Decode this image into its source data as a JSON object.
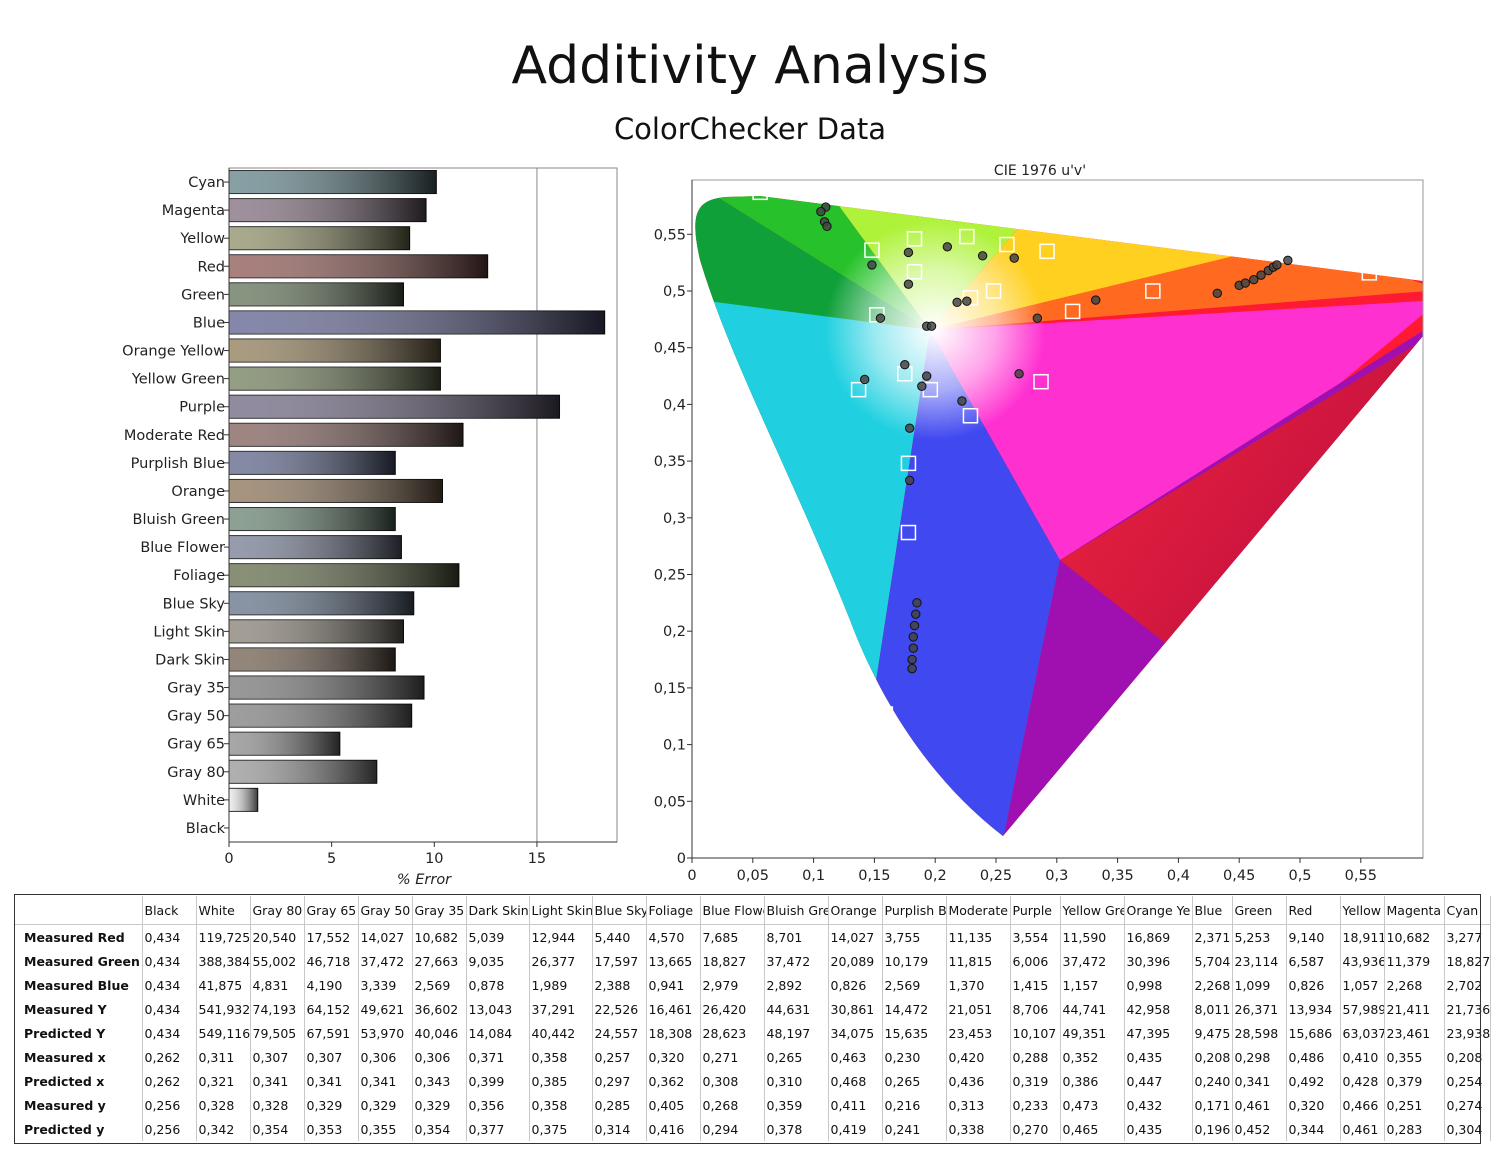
{
  "title": "Additivity Analysis",
  "subtitle": "ColorChecker Data",
  "chart_data": [
    {
      "type": "bar",
      "orientation": "horizontal",
      "categories": [
        "Cyan",
        "Magenta",
        "Yellow",
        "Red",
        "Green",
        "Blue",
        "Orange Yellow",
        "Yellow Green",
        "Purple",
        "Moderate Red",
        "Purplish Blue",
        "Orange",
        "Bluish Green",
        "Blue Flower",
        "Foliage",
        "Blue Sky",
        "Light Skin",
        "Dark Skin",
        "Gray 35",
        "Gray 50",
        "Gray 65",
        "Gray 80",
        "White",
        "Black"
      ],
      "values": [
        10.1,
        9.6,
        8.8,
        12.6,
        8.5,
        18.3,
        10.3,
        10.3,
        16.1,
        11.4,
        8.1,
        10.4,
        8.1,
        8.4,
        11.2,
        9.0,
        8.5,
        8.1,
        9.5,
        8.9,
        5.4,
        7.2,
        1.4,
        0
      ],
      "colors": [
        "#5d8086",
        "#7e6a7c",
        "#8d8d64",
        "#8b5550",
        "#5f7155",
        "#5c5f8e",
        "#8e7a54",
        "#6f7d58",
        "#6c6480",
        "#7e5c58",
        "#5a6289",
        "#8a7054",
        "#65826f",
        "#727b92",
        "#5f6a46",
        "#5f7188",
        "#857e72",
        "#6f5c4b",
        "#757575",
        "#7d7d7d",
        "#8a8a8a",
        "#959595",
        "#e9e9e9",
        "#000000"
      ],
      "xlabel": "% Error",
      "xlim": [
        0,
        18.9
      ],
      "xticks": [
        0,
        5,
        10,
        15
      ],
      "gridlines_x": [
        15
      ],
      "grid": true
    },
    {
      "type": "scatter",
      "title": "CIE 1976 u'v'",
      "xlim": [
        0,
        0.6
      ],
      "ylim": [
        0,
        0.6
      ],
      "xticks": [
        "0",
        "0,05",
        "0,1",
        "0,15",
        "0,2",
        "0,25",
        "0,3",
        "0,35",
        "0,4",
        "0,45",
        "0,5",
        "0,55"
      ],
      "yticks": [
        "0",
        "0,05",
        "0,1",
        "0,15",
        "0,2",
        "0,25",
        "0,3",
        "0,35",
        "0,4",
        "0,45",
        "0,5",
        "0,55"
      ],
      "background": "CIE 1976 u'v' spectral locus (gamut plot)",
      "series": [
        {
          "marker": "square",
          "points": [
            [
              0.056,
              0.587
            ],
            [
              0.148,
              0.536
            ],
            [
              0.183,
              0.546
            ],
            [
              0.226,
              0.548
            ],
            [
              0.259,
              0.541
            ],
            [
              0.292,
              0.535
            ],
            [
              0.183,
              0.517
            ],
            [
              0.229,
              0.494
            ],
            [
              0.248,
              0.5
            ],
            [
              0.379,
              0.5
            ],
            [
              0.557,
              0.516
            ],
            [
              0.152,
              0.479
            ],
            [
              0.313,
              0.482
            ],
            [
              0.175,
              0.427
            ],
            [
              0.287,
              0.42
            ],
            [
              0.137,
              0.413
            ],
            [
              0.196,
              0.413
            ],
            [
              0.229,
              0.39
            ],
            [
              0.178,
              0.348
            ],
            [
              0.178,
              0.287
            ],
            [
              0.159,
              0.127
            ]
          ]
        },
        {
          "marker": "circle",
          "points": [
            [
              0.11,
              0.574
            ],
            [
              0.106,
              0.57
            ],
            [
              0.109,
              0.561
            ],
            [
              0.111,
              0.557
            ],
            [
              0.21,
              0.539
            ],
            [
              0.178,
              0.534
            ],
            [
              0.148,
              0.523
            ],
            [
              0.239,
              0.531
            ],
            [
              0.265,
              0.529
            ],
            [
              0.178,
              0.506
            ],
            [
              0.218,
              0.49
            ],
            [
              0.226,
              0.491
            ],
            [
              0.332,
              0.492
            ],
            [
              0.155,
              0.476
            ],
            [
              0.284,
              0.476
            ],
            [
              0.193,
              0.469
            ],
            [
              0.197,
              0.469
            ],
            [
              0.175,
              0.435
            ],
            [
              0.193,
              0.425
            ],
            [
              0.269,
              0.427
            ],
            [
              0.142,
              0.422
            ],
            [
              0.189,
              0.416
            ],
            [
              0.222,
              0.403
            ],
            [
              0.179,
              0.379
            ],
            [
              0.179,
              0.333
            ],
            [
              0.432,
              0.498
            ],
            [
              0.45,
              0.505
            ],
            [
              0.455,
              0.507
            ],
            [
              0.462,
              0.51
            ],
            [
              0.468,
              0.514
            ],
            [
              0.474,
              0.518
            ],
            [
              0.478,
              0.521
            ],
            [
              0.481,
              0.523
            ],
            [
              0.49,
              0.527
            ],
            [
              0.185,
              0.225
            ],
            [
              0.184,
              0.215
            ],
            [
              0.183,
              0.205
            ],
            [
              0.182,
              0.195
            ],
            [
              0.182,
              0.185
            ],
            [
              0.181,
              0.175
            ],
            [
              0.181,
              0.167
            ]
          ]
        }
      ]
    }
  ],
  "table": {
    "columns": [
      "",
      "Black",
      "White",
      "Gray 80",
      "Gray 65",
      "Gray 50",
      "Gray 35",
      "Dark Skin",
      "Light Skin",
      "Blue Sky",
      "Foliage",
      "Blue Flowe",
      "Bluish Gre",
      "Orange",
      "Purplish Bl",
      "Moderate",
      "Purple",
      "Yellow Gre",
      "Orange Ye",
      "Blue",
      "Green",
      "Red",
      "Yellow",
      "Magenta",
      "Cyan"
    ],
    "rows": [
      {
        "label": "Measured Red",
        "values": [
          "0,434",
          "119,725",
          "20,540",
          "17,552",
          "14,027",
          "10,682",
          "5,039",
          "12,944",
          "5,440",
          "4,570",
          "7,685",
          "8,701",
          "14,027",
          "3,755",
          "11,135",
          "3,554",
          "11,590",
          "16,869",
          "2,371",
          "5,253",
          "9,140",
          "18,911",
          "10,682",
          "3,277"
        ]
      },
      {
        "label": "Measured Green",
        "values": [
          "0,434",
          "388,384",
          "55,002",
          "46,718",
          "37,472",
          "27,663",
          "9,035",
          "26,377",
          "17,597",
          "13,665",
          "18,827",
          "37,472",
          "20,089",
          "10,179",
          "11,815",
          "6,006",
          "37,472",
          "30,396",
          "5,704",
          "23,114",
          "6,587",
          "43,936",
          "11,379",
          "18,827"
        ]
      },
      {
        "label": "Measured Blue",
        "values": [
          "0,434",
          "41,875",
          "4,831",
          "4,190",
          "3,339",
          "2,569",
          "0,878",
          "1,989",
          "2,388",
          "0,941",
          "2,979",
          "2,892",
          "0,826",
          "2,569",
          "1,370",
          "1,415",
          "1,157",
          "0,998",
          "2,268",
          "1,099",
          "0,826",
          "1,057",
          "2,268",
          "2,702"
        ]
      },
      {
        "label": "Measured Y",
        "values": [
          "0,434",
          "541,932",
          "74,193",
          "64,152",
          "49,621",
          "36,602",
          "13,043",
          "37,291",
          "22,526",
          "16,461",
          "26,420",
          "44,631",
          "30,861",
          "14,472",
          "21,051",
          "8,706",
          "44,741",
          "42,958",
          "8,011",
          "26,371",
          "13,934",
          "57,989",
          "21,411",
          "21,736"
        ]
      },
      {
        "label": "Predicted Y",
        "values": [
          "0,434",
          "549,116",
          "79,505",
          "67,591",
          "53,970",
          "40,046",
          "14,084",
          "40,442",
          "24,557",
          "18,308",
          "28,623",
          "48,197",
          "34,075",
          "15,635",
          "23,453",
          "10,107",
          "49,351",
          "47,395",
          "9,475",
          "28,598",
          "15,686",
          "63,037",
          "23,461",
          "23,938"
        ]
      },
      {
        "label": "Measured x",
        "values": [
          "0,262",
          "0,311",
          "0,307",
          "0,307",
          "0,306",
          "0,306",
          "0,371",
          "0,358",
          "0,257",
          "0,320",
          "0,271",
          "0,265",
          "0,463",
          "0,230",
          "0,420",
          "0,288",
          "0,352",
          "0,435",
          "0,208",
          "0,298",
          "0,486",
          "0,410",
          "0,355",
          "0,208"
        ]
      },
      {
        "label": "Predicted x",
        "values": [
          "0,262",
          "0,321",
          "0,341",
          "0,341",
          "0,341",
          "0,343",
          "0,399",
          "0,385",
          "0,297",
          "0,362",
          "0,308",
          "0,310",
          "0,468",
          "0,265",
          "0,436",
          "0,319",
          "0,386",
          "0,447",
          "0,240",
          "0,341",
          "0,492",
          "0,428",
          "0,379",
          "0,254"
        ]
      },
      {
        "label": "Measured y",
        "values": [
          "0,256",
          "0,328",
          "0,328",
          "0,329",
          "0,329",
          "0,329",
          "0,356",
          "0,358",
          "0,285",
          "0,405",
          "0,268",
          "0,359",
          "0,411",
          "0,216",
          "0,313",
          "0,233",
          "0,473",
          "0,432",
          "0,171",
          "0,461",
          "0,320",
          "0,466",
          "0,251",
          "0,274"
        ]
      },
      {
        "label": "Predicted y",
        "values": [
          "0,256",
          "0,342",
          "0,354",
          "0,353",
          "0,355",
          "0,354",
          "0,377",
          "0,375",
          "0,314",
          "0,416",
          "0,294",
          "0,378",
          "0,419",
          "0,241",
          "0,338",
          "0,270",
          "0,465",
          "0,435",
          "0,196",
          "0,452",
          "0,344",
          "0,461",
          "0,283",
          "0,304"
        ]
      }
    ]
  }
}
